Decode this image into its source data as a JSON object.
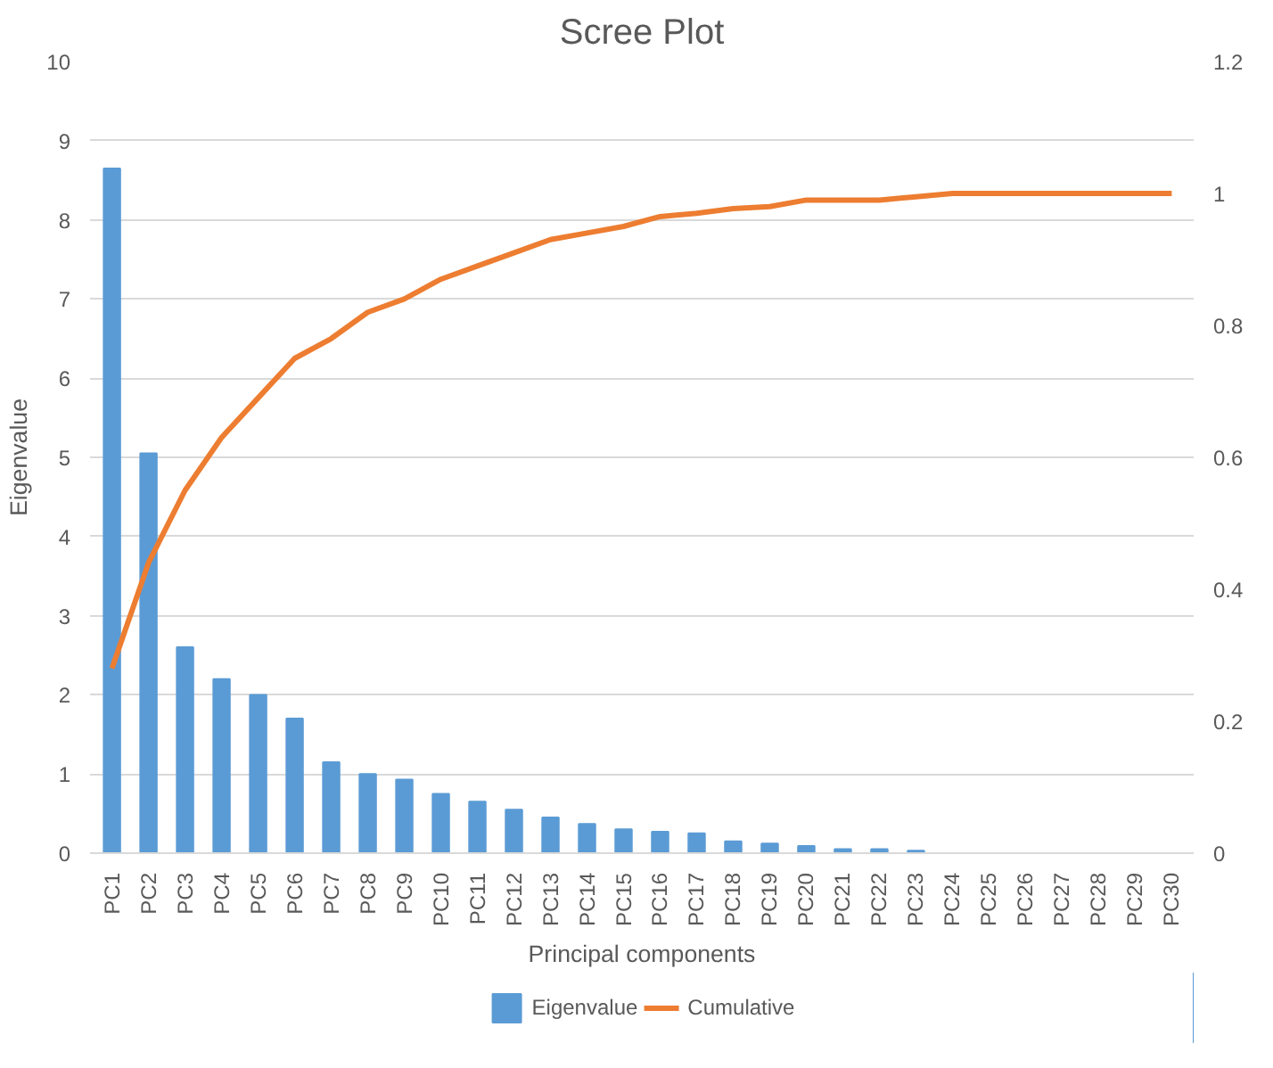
{
  "chart_data": {
    "type": "bar",
    "title": "Scree Plot",
    "xlabel": "Principal components",
    "ylabel": "Eigenvalue",
    "categories": [
      "PC1",
      "PC2",
      "PC3",
      "PC4",
      "PC5",
      "PC6",
      "PC7",
      "PC8",
      "PC9",
      "PC10",
      "PC11",
      "PC12",
      "PC13",
      "PC14",
      "PC15",
      "PC16",
      "PC17",
      "PC18",
      "PC19",
      "PC20",
      "PC21",
      "PC22",
      "PC23",
      "PC24",
      "PC25",
      "PC26",
      "PC27",
      "PC28",
      "PC29",
      "PC30"
    ],
    "series": [
      {
        "name": "Eigenvalue",
        "color": "#5b9bd5",
        "values": [
          8.65,
          5.05,
          2.6,
          2.2,
          2.0,
          1.7,
          1.15,
          1.0,
          0.93,
          0.75,
          0.65,
          0.55,
          0.45,
          0.37,
          0.3,
          0.27,
          0.25,
          0.15,
          0.12,
          0.09,
          0.05,
          0.05,
          0.03,
          0,
          0,
          0,
          0,
          0,
          0,
          0
        ]
      },
      {
        "name": "Cumulative",
        "type": "line",
        "axis": "y2",
        "color": "#ed7d31",
        "values": [
          0.28,
          0.44,
          0.55,
          0.63,
          0.69,
          0.75,
          0.78,
          0.82,
          0.84,
          0.87,
          0.89,
          0.91,
          0.93,
          0.94,
          0.95,
          0.965,
          0.97,
          0.977,
          0.98,
          0.99,
          0.99,
          0.99,
          0.995,
          1.0,
          1.0,
          1.0,
          1.0,
          1.0,
          1.0,
          1.0
        ]
      }
    ],
    "ylim": [
      0,
      10
    ],
    "yticks": [
      0,
      1,
      2,
      3,
      4,
      5,
      6,
      7,
      8,
      9,
      10
    ],
    "y2lim": [
      0,
      1.2
    ],
    "y2ticks": [
      0,
      {
        "value": 0.2,
        "label": "0.2"
      },
      {
        "value": 0.4,
        "label": "0.4"
      },
      {
        "value": 0.6,
        "label": "0.6"
      },
      {
        "value": 0.8,
        "label": "0.8"
      },
      1,
      {
        "value": 1.2,
        "label": "1.2"
      }
    ],
    "grid": "y",
    "legend": "bottom",
    "marker": "none",
    "line_style": "solid"
  }
}
